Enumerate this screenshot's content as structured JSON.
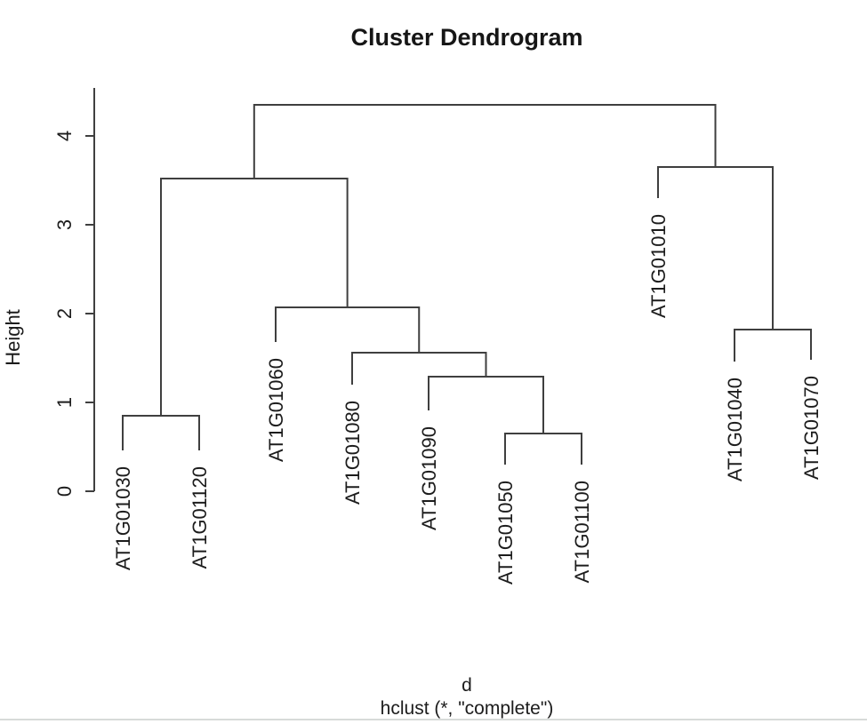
{
  "window": {
    "bottom_edge_color": "#d7dbd9"
  },
  "colors": {
    "line": "#3f3f3f",
    "text": "#1c1c1c",
    "background": "#ffffff"
  },
  "chart_data": {
    "type": "dendrogram",
    "title": "Cluster Dendrogram",
    "ylabel": "Height",
    "xlabel": "d",
    "sub": "hclust (*, \"complete\")",
    "method": "complete",
    "grid": false,
    "legend": false,
    "ylim": [
      0,
      4.35
    ],
    "yticks": [
      0,
      1,
      2,
      3,
      4
    ],
    "leaves": [
      {
        "label": "AT1G01030",
        "hang_bottom": 0.46
      },
      {
        "label": "AT1G01120",
        "hang_bottom": 0.46
      },
      {
        "label": "AT1G01060",
        "hang_bottom": 1.68
      },
      {
        "label": "AT1G01080",
        "hang_bottom": 1.2
      },
      {
        "label": "AT1G01090",
        "hang_bottom": 0.91
      },
      {
        "label": "AT1G01050",
        "hang_bottom": 0.3
      },
      {
        "label": "AT1G01100",
        "hang_bottom": 0.3
      },
      {
        "label": "AT1G01010",
        "hang_bottom": 3.3
      },
      {
        "label": "AT1G01040",
        "hang_bottom": 1.46
      },
      {
        "label": "AT1G01070",
        "hang_bottom": 1.48
      }
    ],
    "merges": [
      {
        "id": "m1",
        "children": [
          "AT1G01050",
          "AT1G01100"
        ],
        "height": 0.65
      },
      {
        "id": "m2",
        "children": [
          "AT1G01030",
          "AT1G01120"
        ],
        "height": 0.85
      },
      {
        "id": "m3",
        "children": [
          "AT1G01090",
          "m1"
        ],
        "height": 1.29
      },
      {
        "id": "m4",
        "children": [
          "AT1G01080",
          "m3"
        ],
        "height": 1.56
      },
      {
        "id": "m5",
        "children": [
          "AT1G01040",
          "AT1G01070"
        ],
        "height": 1.82
      },
      {
        "id": "m6",
        "children": [
          "AT1G01060",
          "m4"
        ],
        "height": 2.07
      },
      {
        "id": "m7",
        "children": [
          "m2",
          "m6"
        ],
        "height": 3.52
      },
      {
        "id": "m8",
        "children": [
          "AT1G01010",
          "m5"
        ],
        "height": 3.65
      },
      {
        "id": "m9",
        "children": [
          "m7",
          "m8"
        ],
        "height": 4.35
      }
    ]
  }
}
